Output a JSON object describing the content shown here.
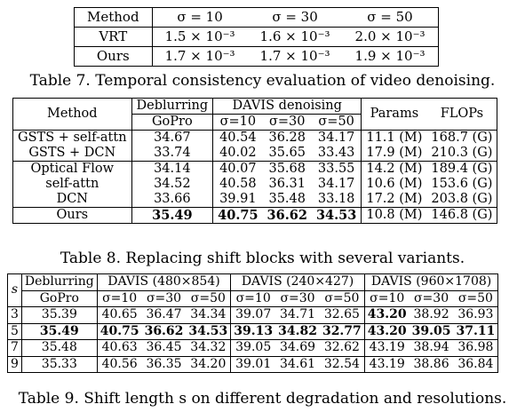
{
  "table7": {
    "header": [
      "Method",
      "σ = 10",
      "σ = 30",
      "σ = 50"
    ],
    "rows": [
      {
        "method": "VRT",
        "values": [
          "1.5 × 10⁻³",
          "1.6 × 10⁻³",
          "2.0 × 10⁻³"
        ]
      },
      {
        "method": "Ours",
        "values": [
          "1.7 × 10⁻³",
          "1.7 × 10⁻³",
          "1.9 × 10⁻³"
        ]
      }
    ],
    "caption": "Table 7. Temporal consistency evaluation of video denoising."
  },
  "table8": {
    "header": {
      "method": "Method",
      "deblurring": "Deblurring",
      "gopro": "GoPro",
      "davis": "DAVIS denoising",
      "s10": "σ=10",
      "s30": "σ=30",
      "s50": "σ=50",
      "params": "Params",
      "flops": "FLOPs"
    },
    "rows": [
      {
        "method": "GSTS + self-attn",
        "values": [
          "34.67",
          "40.54",
          "36.28",
          "34.17",
          "11.1 (M)",
          "168.7 (G)"
        ]
      },
      {
        "method": "GSTS + DCN",
        "values": [
          "33.74",
          "40.02",
          "35.65",
          "33.43",
          "17.9 (M)",
          "210.3 (G)"
        ]
      },
      {
        "method": "Optical Flow",
        "values": [
          "34.14",
          "40.07",
          "35.68",
          "33.55",
          "14.2 (M)",
          "189.4 (G)"
        ]
      },
      {
        "method": "self-attn",
        "values": [
          "34.52",
          "40.58",
          "36.31",
          "34.17",
          "10.6 (M)",
          "153.6 (G)"
        ]
      },
      {
        "method": "DCN",
        "values": [
          "33.66",
          "39.91",
          "35.48",
          "33.18",
          "17.2 (M)",
          "203.8 (G)"
        ]
      },
      {
        "method": "Ours",
        "values": [
          "35.49",
          "40.75",
          "36.62",
          "34.53",
          "10.8 (M)",
          "146.8 (G)"
        ]
      }
    ],
    "caption": "Table 8. Replacing shift blocks with several variants."
  },
  "table9": {
    "header": {
      "s": "s",
      "deblurring": "Deblurring",
      "gopro": "GoPro",
      "davis1": "DAVIS (480×854)",
      "davis2": "DAVIS (240×427)",
      "davis3": "DAVIS (960×1708)",
      "s10": "σ=10",
      "s30": "σ=30",
      "s50": "σ=50"
    },
    "rows": [
      {
        "s": "3",
        "values": [
          "35.39",
          "40.65",
          "36.47",
          "34.34",
          "39.07",
          "34.71",
          "32.65",
          "43.20",
          "38.92",
          "36.93"
        ]
      },
      {
        "s": "5",
        "values": [
          "35.49",
          "40.75",
          "36.62",
          "34.53",
          "39.13",
          "34.82",
          "32.77",
          "43.20",
          "39.05",
          "37.11"
        ]
      },
      {
        "s": "7",
        "values": [
          "35.48",
          "40.63",
          "36.45",
          "34.32",
          "39.05",
          "34.69",
          "32.62",
          "43.19",
          "38.94",
          "36.98"
        ]
      },
      {
        "s": "9",
        "values": [
          "35.33",
          "40.56",
          "36.35",
          "34.20",
          "39.01",
          "34.61",
          "32.54",
          "43.19",
          "38.86",
          "36.84"
        ]
      }
    ],
    "caption": "Table 9. Shift length s on different degradation and resolutions."
  }
}
